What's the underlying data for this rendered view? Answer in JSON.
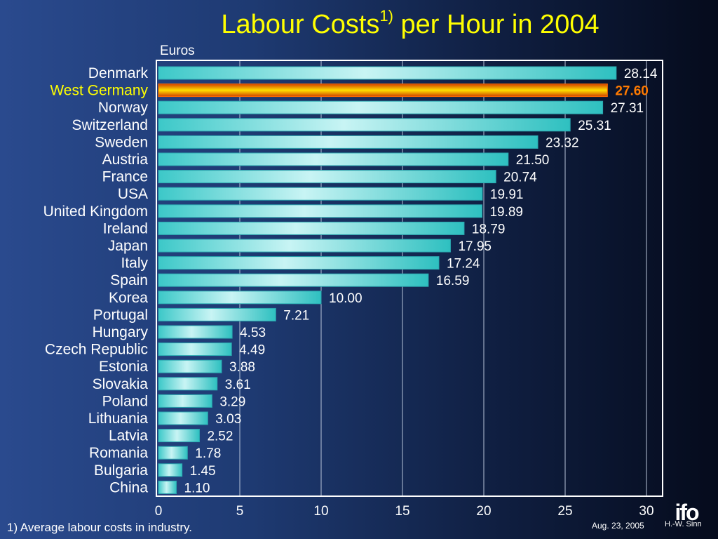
{
  "header": {
    "title_main": "Labour Costs",
    "title_sup": "1)",
    "title_rest": " per Hour in 2004"
  },
  "unit_label": "Euros",
  "footnote": "1) Average labour costs in industry.",
  "date": "Aug. 23, 2005",
  "author": "H.-W. Sinn",
  "logo_text": "ifo",
  "colors": {
    "title": "#ffff00",
    "bar": "#40d0d0",
    "highlight_bar": "#ff8c00",
    "highlight_label": "#ffff00",
    "highlight_value": "#ff7a00",
    "text": "#ffffff"
  },
  "chart_data": {
    "type": "bar",
    "orientation": "horizontal",
    "categories": [
      "Denmark",
      "West Germany",
      "Norway",
      "Switzerland",
      "Sweden",
      "Austria",
      "France",
      "USA",
      "United Kingdom",
      "Ireland",
      "Japan",
      "Italy",
      "Spain",
      "Korea",
      "Portugal",
      "Hungary",
      "Czech Republic",
      "Estonia",
      "Slovakia",
      "Poland",
      "Lithuania",
      "Latvia",
      "Romania",
      "Bulgaria",
      "China"
    ],
    "values": [
      28.14,
      27.6,
      27.31,
      25.31,
      23.32,
      21.5,
      20.74,
      19.91,
      19.89,
      18.79,
      17.95,
      17.24,
      16.59,
      10.0,
      7.21,
      4.53,
      4.49,
      3.88,
      3.61,
      3.29,
      3.03,
      2.52,
      1.78,
      1.45,
      1.1
    ],
    "value_labels": [
      "28.14",
      "27.60",
      "27.31",
      "25.31",
      "23.32",
      "21.50",
      "20.74",
      "19.91",
      "19.89",
      "18.79",
      "17.95",
      "17.24",
      "16.59",
      "10.00",
      "7.21",
      "4.53",
      "4.49",
      "3.88",
      "3.61",
      "3.29",
      "3.03",
      "2.52",
      "1.78",
      "1.45",
      "1.10"
    ],
    "highlight": "West Germany",
    "xlim": [
      0,
      30
    ],
    "xticks": [
      0,
      5,
      10,
      15,
      20,
      25,
      30
    ],
    "grid": true
  }
}
